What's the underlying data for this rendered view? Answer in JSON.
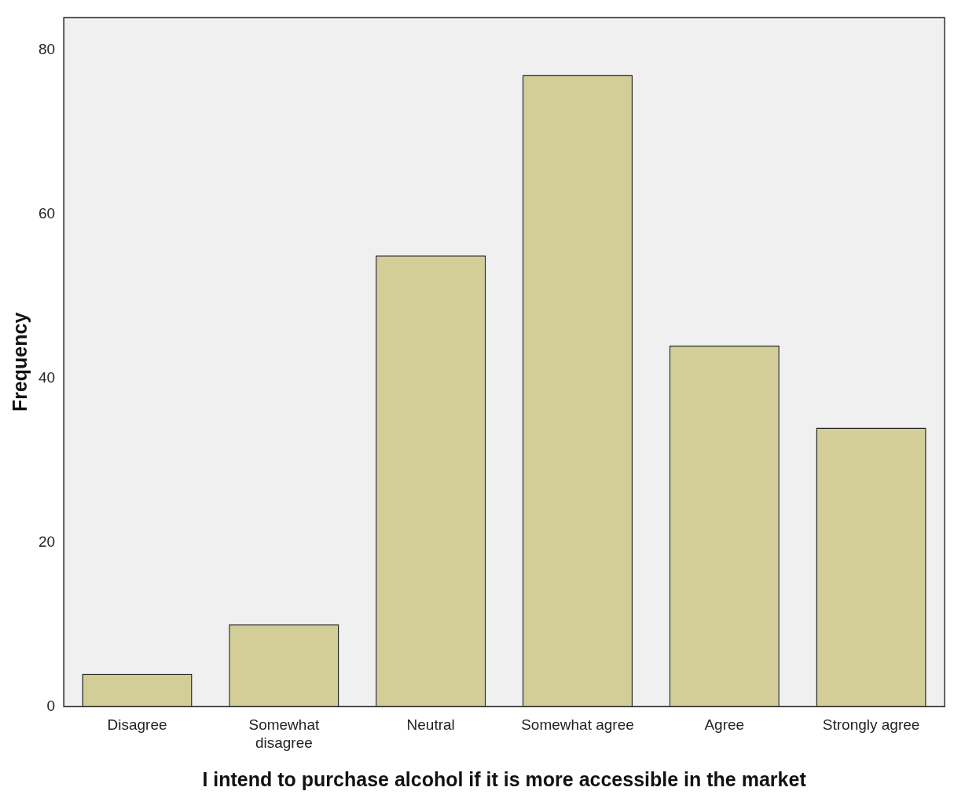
{
  "chart_data": {
    "type": "bar",
    "xlabel": "I intend to purchase alcohol if it is more accessible in the market",
    "ylabel": "Frequency",
    "categories": [
      "Disagree",
      "Somewhat disagree",
      "Neutral",
      "Somewhat agree",
      "Agree",
      "Strongly agree"
    ],
    "values": [
      4,
      10,
      55,
      77,
      44,
      34
    ],
    "color": "#d3ce97",
    "ylim": [
      0,
      84
    ],
    "yticks": [
      0,
      20,
      40,
      60,
      80
    ],
    "grid": false,
    "legend": false
  }
}
